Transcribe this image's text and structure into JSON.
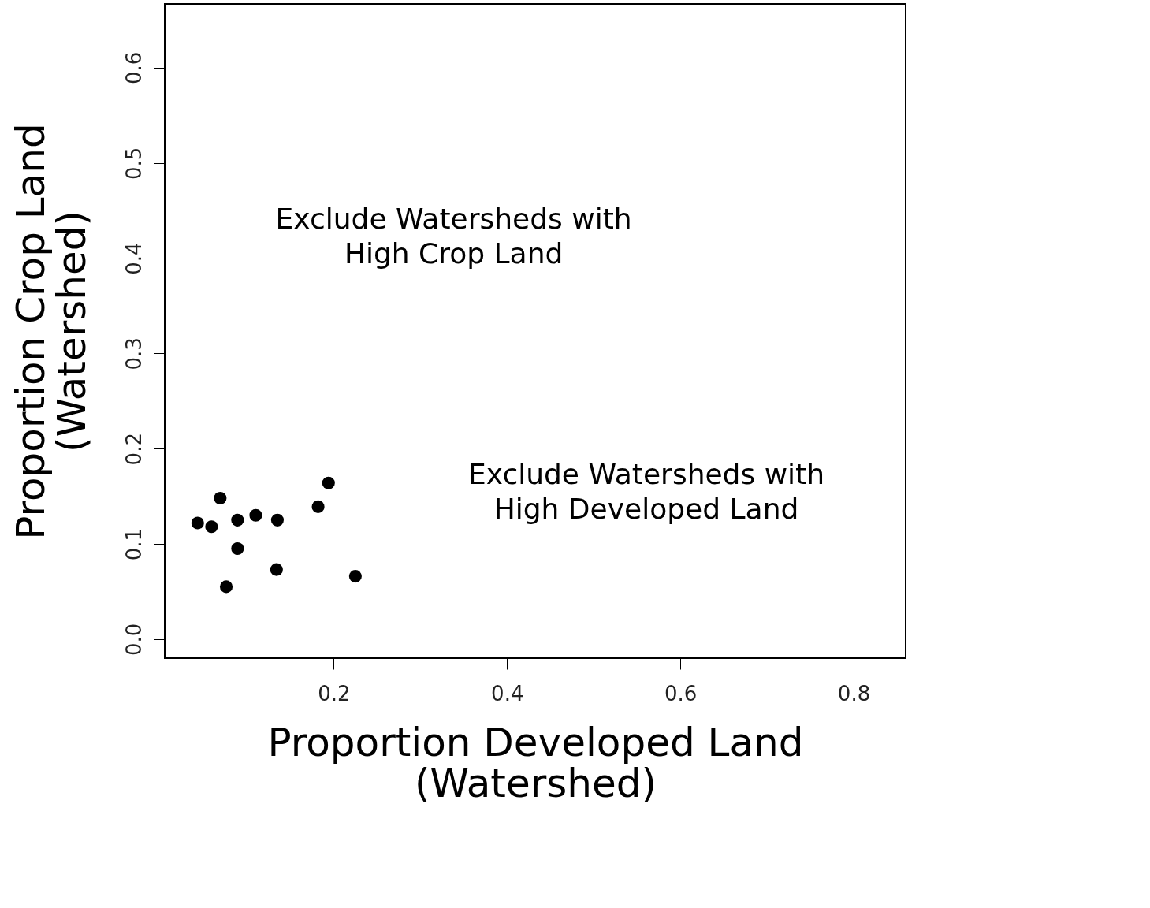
{
  "chart_data": {
    "type": "scatter",
    "xlabel": "Proportion Developed Land\n(Watershed)",
    "ylabel": "Proportion Crop Land\n(Watershed)",
    "x": [
      0.043,
      0.059,
      0.069,
      0.076,
      0.089,
      0.089,
      0.11,
      0.134,
      0.135,
      0.182,
      0.194,
      0.225
    ],
    "series": [
      {
        "color": "#000000",
        "values": [
          0.122,
          0.118,
          0.148,
          0.055,
          0.125,
          0.095,
          0.13,
          0.073,
          0.125,
          0.139,
          0.164,
          0.066
        ]
      }
    ],
    "xlim": [
      0.005,
      0.86
    ],
    "xticks": [
      0.2,
      0.4,
      0.6,
      0.8
    ],
    "ylim": [
      -0.02,
      0.667
    ],
    "yticks": [
      {
        "value": 0,
        "label": "0.0"
      },
      0.1,
      0.2,
      0.3,
      0.4,
      0.5,
      0.6
    ],
    "grid": false,
    "annotations": [
      "Exclude Watersheds with\nHigh Crop Land",
      "Exclude Watersheds with\nHigh Developed Land"
    ]
  }
}
